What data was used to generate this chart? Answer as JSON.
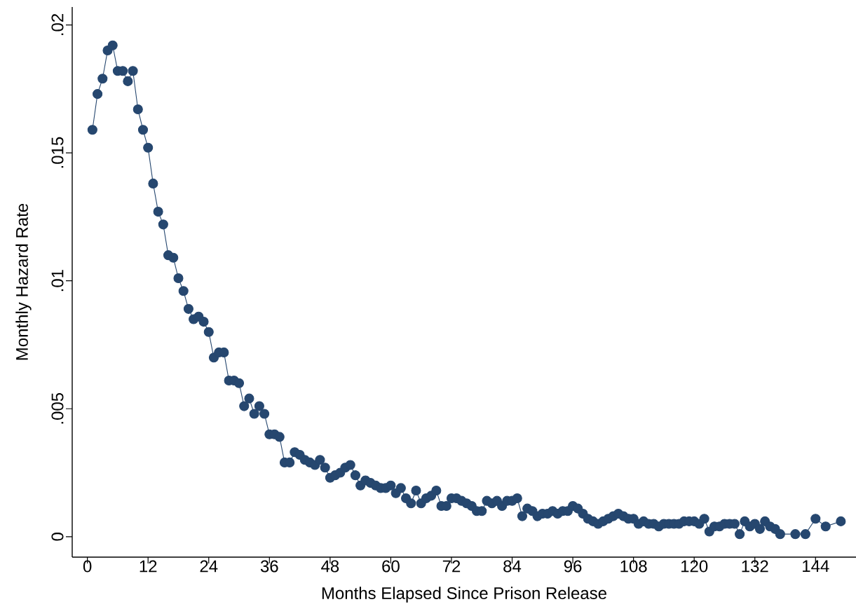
{
  "chart_data": {
    "type": "line",
    "xlabel": "Months Elapsed Since Prison Release",
    "ylabel": "Monthly Hazard Rate",
    "x": [
      1,
      2,
      3,
      4,
      5,
      6,
      7,
      8,
      9,
      10,
      11,
      12,
      13,
      14,
      15,
      16,
      17,
      18,
      19,
      20,
      21,
      22,
      23,
      24,
      25,
      26,
      27,
      28,
      29,
      30,
      31,
      32,
      33,
      34,
      35,
      36,
      37,
      38,
      39,
      40,
      41,
      42,
      43,
      44,
      45,
      46,
      47,
      48,
      49,
      50,
      51,
      52,
      53,
      54,
      55,
      56,
      57,
      58,
      59,
      60,
      61,
      62,
      63,
      64,
      65,
      66,
      67,
      68,
      69,
      70,
      71,
      72,
      73,
      74,
      75,
      76,
      77,
      78,
      79,
      80,
      81,
      82,
      83,
      84,
      85,
      86,
      87,
      88,
      89,
      90,
      91,
      92,
      93,
      94,
      95,
      96,
      97,
      98,
      99,
      100,
      101,
      102,
      103,
      104,
      105,
      106,
      107,
      108,
      109,
      110,
      111,
      112,
      113,
      114,
      115,
      116,
      117,
      118,
      119,
      120,
      121,
      122,
      123,
      124,
      125,
      126,
      127,
      128,
      129,
      130,
      131,
      132,
      133,
      134,
      135,
      136,
      137,
      140,
      142,
      144,
      146,
      149
    ],
    "series": [
      {
        "color": "#26476f",
        "values": [
          0.0159,
          0.0173,
          0.0179,
          0.019,
          0.0192,
          0.0182,
          0.0182,
          0.0178,
          0.0182,
          0.0167,
          0.0159,
          0.0152,
          0.0138,
          0.0127,
          0.0122,
          0.011,
          0.0109,
          0.0101,
          0.0096,
          0.0089,
          0.0085,
          0.0086,
          0.0084,
          0.008,
          0.007,
          0.0072,
          0.0072,
          0.0061,
          0.0061,
          0.006,
          0.0051,
          0.0054,
          0.0048,
          0.0051,
          0.0048,
          0.004,
          0.004,
          0.0039,
          0.0029,
          0.0029,
          0.0033,
          0.0032,
          0.003,
          0.0029,
          0.0028,
          0.003,
          0.0027,
          0.0023,
          0.0024,
          0.0025,
          0.0027,
          0.0028,
          0.0024,
          0.002,
          0.0022,
          0.0021,
          0.002,
          0.0019,
          0.0019,
          0.002,
          0.0017,
          0.0019,
          0.0015,
          0.0013,
          0.0018,
          0.0013,
          0.0015,
          0.0016,
          0.0018,
          0.0012,
          0.0012,
          0.0015,
          0.0015,
          0.0014,
          0.0013,
          0.0012,
          0.001,
          0.001,
          0.0014,
          0.0013,
          0.0014,
          0.0012,
          0.0014,
          0.0014,
          0.0015,
          0.0008,
          0.0011,
          0.001,
          0.0008,
          0.0009,
          0.0009,
          0.001,
          0.0009,
          0.001,
          0.001,
          0.0012,
          0.0011,
          0.0009,
          0.0007,
          0.0006,
          0.0005,
          0.0006,
          0.0007,
          0.0008,
          0.0009,
          0.0008,
          0.0007,
          0.0007,
          0.0005,
          0.0006,
          0.0005,
          0.0005,
          0.0004,
          0.0005,
          0.0005,
          0.0005,
          0.0005,
          0.0006,
          0.0006,
          0.0006,
          0.0005,
          0.0007,
          0.0002,
          0.0004,
          0.0004,
          0.0005,
          0.0005,
          0.0005,
          0.0001,
          0.0006,
          0.0004,
          0.0005,
          0.0003,
          0.0006,
          0.0004,
          0.0003,
          0.0001,
          0.0001,
          0.0001,
          0.0007,
          0.0004,
          0.0006
        ]
      }
    ],
    "xlim": [
      -3,
      152
    ],
    "ylim": [
      -0.0008,
      0.0207
    ],
    "xticks": [
      0,
      12,
      24,
      36,
      48,
      60,
      72,
      84,
      96,
      108,
      120,
      132,
      144
    ],
    "yticks": [
      0,
      {
        "value": 0.005,
        "label": ".005"
      },
      {
        "value": 0.01,
        "label": ".01"
      },
      {
        "value": 0.015,
        "label": ".015"
      },
      {
        "value": 0.02,
        "label": ".02"
      }
    ],
    "grid": false,
    "marker": "circle",
    "line_style": "solid"
  }
}
